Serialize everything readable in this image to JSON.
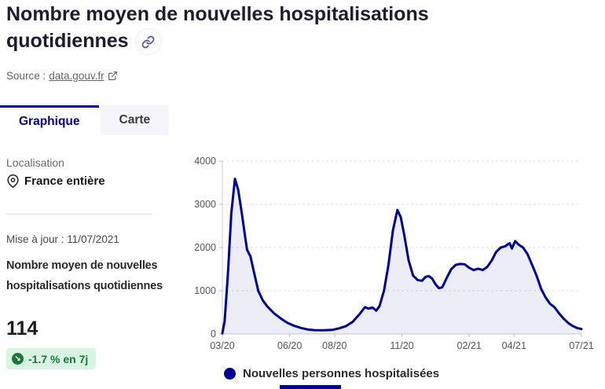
{
  "header": {
    "title": "Nombre moyen de nouvelles hospitalisations quotidiennes",
    "source_label": "Source :",
    "source_link": "data.gouv.fr"
  },
  "tabs": [
    {
      "label": "Graphique",
      "active": true
    },
    {
      "label": "Carte",
      "active": false
    }
  ],
  "sidebar": {
    "localisation_label": "Localisation",
    "localisation_value": "France entière",
    "updated": "Mise à jour : 11/07/2021",
    "metric_label": "Nombre moyen de nouvelles hospitalisations quotidiennes",
    "metric_value": "114",
    "trend_badge": "-1.7 % en 7j"
  },
  "colors": {
    "brand_blue": "#000091",
    "area_fill": "rgba(0,0,145,0.07)",
    "success_text": "#18753c",
    "success_bg": "#d8f5e1",
    "gridline": "#dddddd",
    "axis": "#cccccc"
  },
  "chart_data": {
    "type": "area",
    "title": "Nombre moyen de nouvelles hospitalisations quotidiennes",
    "xlabel": "",
    "ylabel": "",
    "x_unit": "months since 03/2020",
    "xlim": [
      0,
      16
    ],
    "ylim": [
      0,
      4000
    ],
    "y_ticks": [
      0,
      1000,
      2000,
      3000,
      4000
    ],
    "x_tick_positions": [
      0,
      3,
      5,
      8,
      11,
      13,
      16
    ],
    "x_tick_labels": [
      "03/20",
      "06/20",
      "08/20",
      "11/20",
      "02/21",
      "04/21",
      "07/21"
    ],
    "grid": "dashed-horizontal",
    "legend_position": "bottom",
    "legend": [
      {
        "label": "Nouvelles personnes hospitalisées",
        "color": "#000091"
      }
    ],
    "series": [
      {
        "name": "Nouvelles personnes hospitalisées",
        "color": "#000091",
        "points": [
          [
            0,
            15
          ],
          [
            0.1,
            300
          ],
          [
            0.25,
            1400
          ],
          [
            0.4,
            2800
          ],
          [
            0.56,
            3590
          ],
          [
            0.7,
            3350
          ],
          [
            0.85,
            2850
          ],
          [
            1.0,
            2300
          ],
          [
            1.1,
            1950
          ],
          [
            1.25,
            1800
          ],
          [
            1.4,
            1450
          ],
          [
            1.6,
            1000
          ],
          [
            1.8,
            780
          ],
          [
            2.0,
            640
          ],
          [
            2.3,
            480
          ],
          [
            2.6,
            360
          ],
          [
            2.9,
            260
          ],
          [
            3.2,
            190
          ],
          [
            3.5,
            140
          ],
          [
            3.8,
            105
          ],
          [
            4.1,
            90
          ],
          [
            4.5,
            85
          ],
          [
            4.9,
            95
          ],
          [
            5.2,
            130
          ],
          [
            5.5,
            180
          ],
          [
            5.8,
            280
          ],
          [
            6.1,
            450
          ],
          [
            6.35,
            620
          ],
          [
            6.5,
            590
          ],
          [
            6.7,
            610
          ],
          [
            6.85,
            540
          ],
          [
            7.0,
            640
          ],
          [
            7.2,
            1000
          ],
          [
            7.4,
            1600
          ],
          [
            7.6,
            2400
          ],
          [
            7.8,
            2870
          ],
          [
            7.95,
            2700
          ],
          [
            8.1,
            2300
          ],
          [
            8.3,
            1700
          ],
          [
            8.5,
            1350
          ],
          [
            8.7,
            1250
          ],
          [
            8.9,
            1230
          ],
          [
            9.05,
            1320
          ],
          [
            9.2,
            1340
          ],
          [
            9.35,
            1280
          ],
          [
            9.5,
            1150
          ],
          [
            9.65,
            1060
          ],
          [
            9.8,
            1080
          ],
          [
            10.0,
            1300
          ],
          [
            10.2,
            1500
          ],
          [
            10.4,
            1600
          ],
          [
            10.6,
            1620
          ],
          [
            10.8,
            1610
          ],
          [
            11.0,
            1530
          ],
          [
            11.2,
            1480
          ],
          [
            11.4,
            1510
          ],
          [
            11.6,
            1480
          ],
          [
            11.8,
            1550
          ],
          [
            12.0,
            1700
          ],
          [
            12.2,
            1900
          ],
          [
            12.4,
            2000
          ],
          [
            12.6,
            2030
          ],
          [
            12.8,
            2100
          ],
          [
            12.9,
            1980
          ],
          [
            13.05,
            2150
          ],
          [
            13.2,
            2070
          ],
          [
            13.4,
            2000
          ],
          [
            13.6,
            1850
          ],
          [
            13.8,
            1600
          ],
          [
            14.0,
            1350
          ],
          [
            14.2,
            1050
          ],
          [
            14.4,
            850
          ],
          [
            14.6,
            700
          ],
          [
            14.8,
            620
          ],
          [
            15.0,
            480
          ],
          [
            15.2,
            360
          ],
          [
            15.4,
            260
          ],
          [
            15.6,
            190
          ],
          [
            15.8,
            140
          ],
          [
            16.0,
            114
          ]
        ]
      }
    ]
  }
}
